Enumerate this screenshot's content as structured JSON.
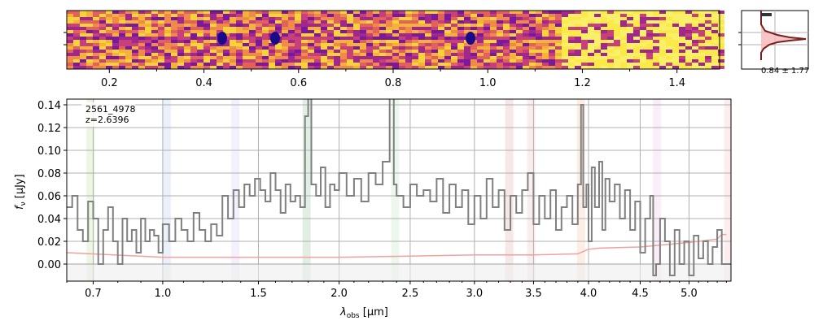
{
  "chart_data": {
    "type": "line",
    "object_id": "2561_4978",
    "redshift_label": "z=2.6396",
    "xlabel_main": "λ",
    "xlabel_sub": "obs",
    "xlabel_unit": " [μm]",
    "ylabel": "f",
    "ylabel_sub": "ν",
    "ylabel_unit": " [μJy]",
    "ylim": [
      -0.015,
      0.145
    ],
    "xlim": [
      0.6,
      5.45
    ],
    "y_ticks": [
      "0.00",
      "0.02",
      "0.04",
      "0.06",
      "0.08",
      "0.10",
      "0.12",
      "0.14"
    ],
    "x_ticks": [
      "0.7",
      "1.0",
      "1.5",
      "2.0",
      "2.5",
      "3.0",
      "3.5",
      "4.0",
      "4.5",
      "5.0"
    ],
    "top_ticks": [
      "0.2",
      "0.4",
      "0.6",
      "0.8",
      "1.0",
      "1.2",
      "1.4"
    ],
    "profile_label": "0.84 ± 1.77",
    "grid": true,
    "colors": {
      "spectrum": "#808080",
      "error": "#f2a0a0",
      "zero_band": "#eeeeee",
      "profile_fill": "#f6b8b8",
      "profile_line": "#7a1f1f"
    },
    "series": [
      {
        "x": [
          0.6,
          0.62,
          0.64,
          0.66,
          0.68,
          0.7,
          0.72,
          0.74,
          0.76,
          0.78,
          0.8,
          0.82,
          0.84,
          0.86,
          0.88,
          0.9,
          0.92,
          0.94,
          0.96,
          0.98,
          1.0,
          1.03,
          1.06,
          1.09,
          1.12,
          1.15,
          1.18,
          1.21,
          1.24,
          1.27,
          1.3,
          1.33,
          1.36,
          1.39,
          1.42,
          1.45,
          1.48,
          1.51,
          1.54,
          1.57,
          1.6,
          1.63,
          1.66,
          1.69,
          1.72,
          1.75,
          1.78,
          1.8,
          1.82,
          1.85,
          1.88,
          1.91,
          1.94,
          1.97,
          2.0,
          2.05,
          2.1,
          2.15,
          2.2,
          2.25,
          2.3,
          2.35,
          2.38,
          2.4,
          2.45,
          2.5,
          2.55,
          2.6,
          2.65,
          2.7,
          2.75,
          2.8,
          2.85,
          2.9,
          2.95,
          3.0,
          3.05,
          3.1,
          3.15,
          3.2,
          3.25,
          3.3,
          3.35,
          3.4,
          3.45,
          3.5,
          3.55,
          3.6,
          3.65,
          3.7,
          3.75,
          3.8,
          3.85,
          3.9,
          3.93,
          3.95,
          3.98,
          4.0,
          4.03,
          4.06,
          4.1,
          4.13,
          4.16,
          4.2,
          4.25,
          4.3,
          4.35,
          4.4,
          4.45,
          4.5,
          4.55,
          4.6,
          4.63,
          4.66,
          4.7,
          4.75,
          4.8,
          4.85,
          4.9,
          4.95,
          5.0,
          5.05,
          5.1,
          5.15,
          5.2,
          5.25,
          5.3,
          5.35,
          5.4
        ],
        "values": [
          0.05,
          0.06,
          0.03,
          0.02,
          0.055,
          0.04,
          0.0,
          0.03,
          0.05,
          0.02,
          0.0,
          0.04,
          0.02,
          0.03,
          0.01,
          0.04,
          0.02,
          0.03,
          0.025,
          0.01,
          0.035,
          0.02,
          0.04,
          0.03,
          0.02,
          0.045,
          0.03,
          0.02,
          0.035,
          0.025,
          0.06,
          0.04,
          0.065,
          0.05,
          0.07,
          0.06,
          0.075,
          0.065,
          0.055,
          0.08,
          0.065,
          0.045,
          0.07,
          0.055,
          0.06,
          0.05,
          0.13,
          0.15,
          0.07,
          0.06,
          0.085,
          0.05,
          0.07,
          0.065,
          0.08,
          0.06,
          0.075,
          0.055,
          0.08,
          0.07,
          0.09,
          0.15,
          0.07,
          0.06,
          0.05,
          0.07,
          0.06,
          0.065,
          0.055,
          0.075,
          0.045,
          0.07,
          0.05,
          0.065,
          0.035,
          0.06,
          0.04,
          0.075,
          0.05,
          0.065,
          0.03,
          0.06,
          0.045,
          0.065,
          0.08,
          0.035,
          0.06,
          0.04,
          0.065,
          0.03,
          0.05,
          0.06,
          0.035,
          0.07,
          0.14,
          0.05,
          0.07,
          0.02,
          0.085,
          0.05,
          0.09,
          0.03,
          0.075,
          0.055,
          0.07,
          0.04,
          0.065,
          0.03,
          0.055,
          0.01,
          0.04,
          0.06,
          -0.01,
          0.0,
          0.04,
          0.02,
          -0.01,
          0.03,
          0.0,
          0.02,
          -0.01,
          0.025,
          0.005,
          0.02,
          0.0,
          0.015,
          0.03,
          0.0,
          0.0
        ]
      }
    ],
    "error_series": {
      "x": [
        0.6,
        1.0,
        1.5,
        2.0,
        2.5,
        3.0,
        3.5,
        3.9,
        4.0,
        4.1,
        4.5,
        5.0,
        5.2,
        5.3,
        5.35,
        5.4
      ],
      "values": [
        0.01,
        0.006,
        0.006,
        0.006,
        0.007,
        0.008,
        0.008,
        0.009,
        0.013,
        0.014,
        0.015,
        0.019,
        0.021,
        0.022,
        0.026,
        0.026
      ]
    },
    "line_bands": [
      {
        "x": 0.69,
        "color": "#9acd60"
      },
      {
        "x": 1.02,
        "color": "#8fb4e6"
      },
      {
        "x": 1.37,
        "color": "#c8b4ee"
      },
      {
        "x": 1.79,
        "color": "#5aa06a"
      },
      {
        "x": 2.39,
        "color": "#9fd29a"
      },
      {
        "x": 3.29,
        "color": "#d08080"
      },
      {
        "x": 3.48,
        "color": "#e09a9a"
      },
      {
        "x": 3.93,
        "color": "#f0a070"
      },
      {
        "x": 4.67,
        "color": "#e6a0d8"
      },
      {
        "x": 5.42,
        "color": "#f0a0a0"
      }
    ]
  }
}
